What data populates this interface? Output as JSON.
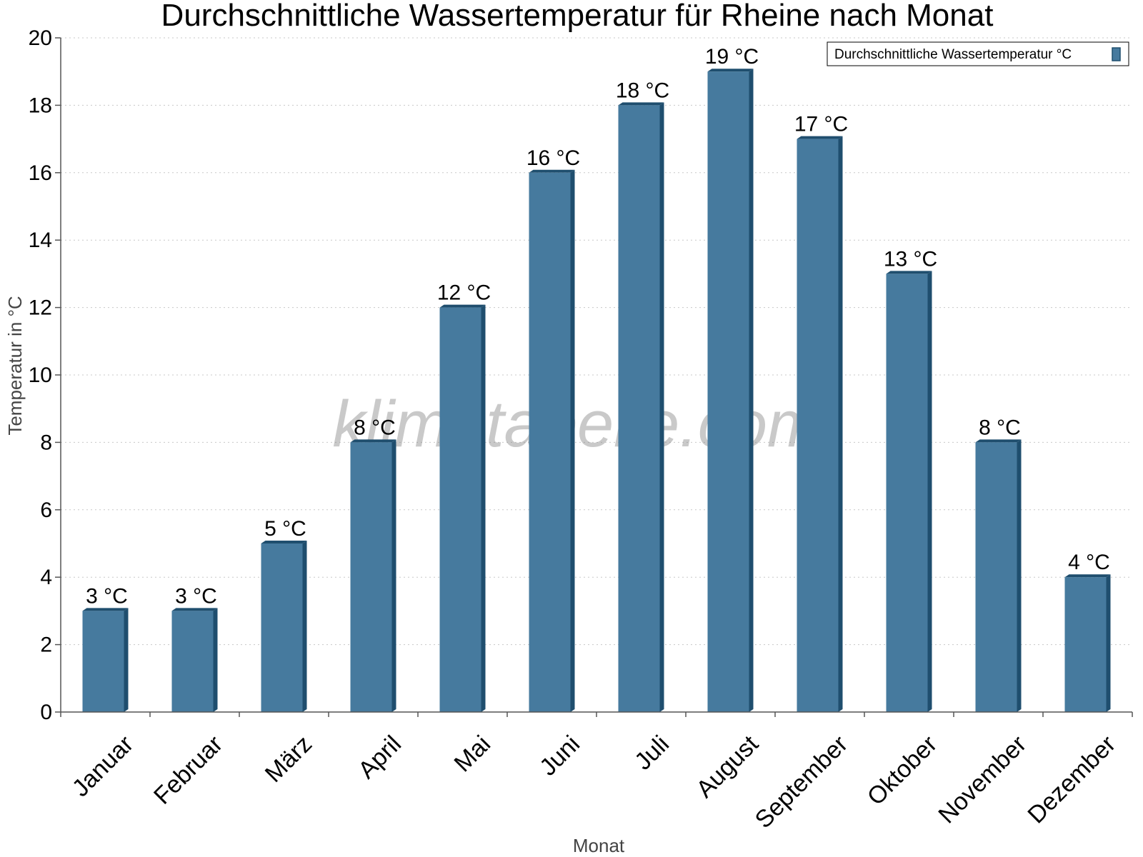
{
  "chart_data": {
    "type": "bar",
    "title": "Durchschnittliche Wassertemperatur für Rheine nach Monat",
    "xlabel": "Monat",
    "ylabel": "Temperatur in °C",
    "categories": [
      "Januar",
      "Februar",
      "März",
      "April",
      "Mai",
      "Juni",
      "Juli",
      "August",
      "September",
      "Oktober",
      "November",
      "Dezember"
    ],
    "series": [
      {
        "name": "Durchschnittliche Wassertemperatur °C",
        "values": [
          3,
          3,
          5,
          8,
          12,
          16,
          18,
          19,
          17,
          13,
          8,
          4
        ],
        "data_labels": [
          "3 °C",
          "3 °C",
          "5 °C",
          "8 °C",
          "12 °C",
          "16 °C",
          "18 °C",
          "19 °C",
          "17 °C",
          "13 °C",
          "8 °C",
          "4 °C"
        ]
      }
    ],
    "ylim": [
      0,
      20
    ],
    "yticks": [
      "0",
      "2",
      "4",
      "6",
      "8",
      "10",
      "12",
      "14",
      "16",
      "18",
      "20"
    ],
    "grid": true,
    "legend_position": "top-right",
    "colors": {
      "bar": "#467a9e",
      "bar_side": "#1f4e6e"
    }
  },
  "watermark": "klimatabelle.com"
}
